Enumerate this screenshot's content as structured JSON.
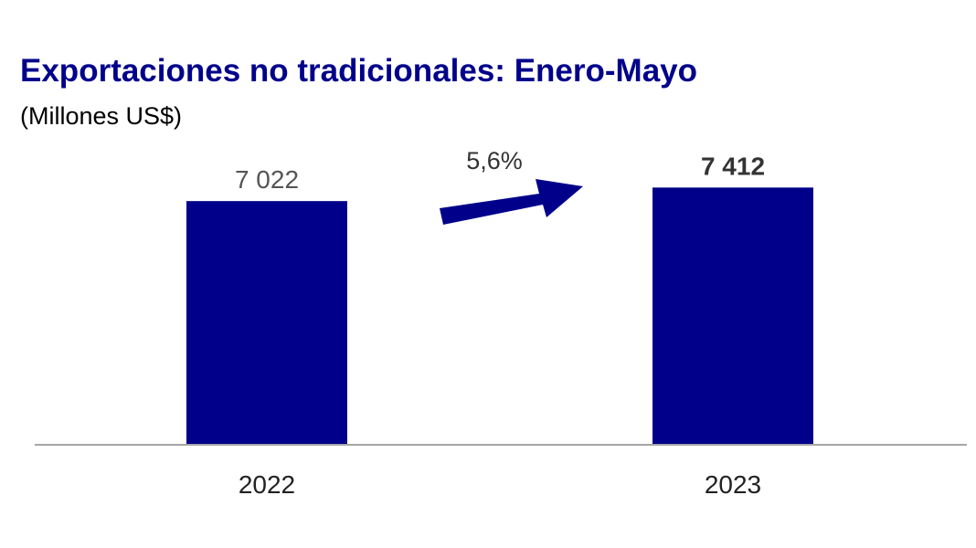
{
  "chart_data": {
    "type": "bar",
    "title": "Exportaciones no tradicionales: Enero-Mayo",
    "subtitle": "(Millones US$)",
    "categories": [
      "2022",
      "2023"
    ],
    "values": [
      7022,
      7412
    ],
    "value_labels": [
      "7 022",
      "7 412"
    ],
    "growth_annotation": "5,6%",
    "ylim": [
      0,
      8000
    ],
    "grid": false,
    "legend": "none",
    "bar_color": "#00008b",
    "title_color": "#00008b",
    "arrow_color": "#00008b",
    "axis_color": "#a6a6a6"
  }
}
